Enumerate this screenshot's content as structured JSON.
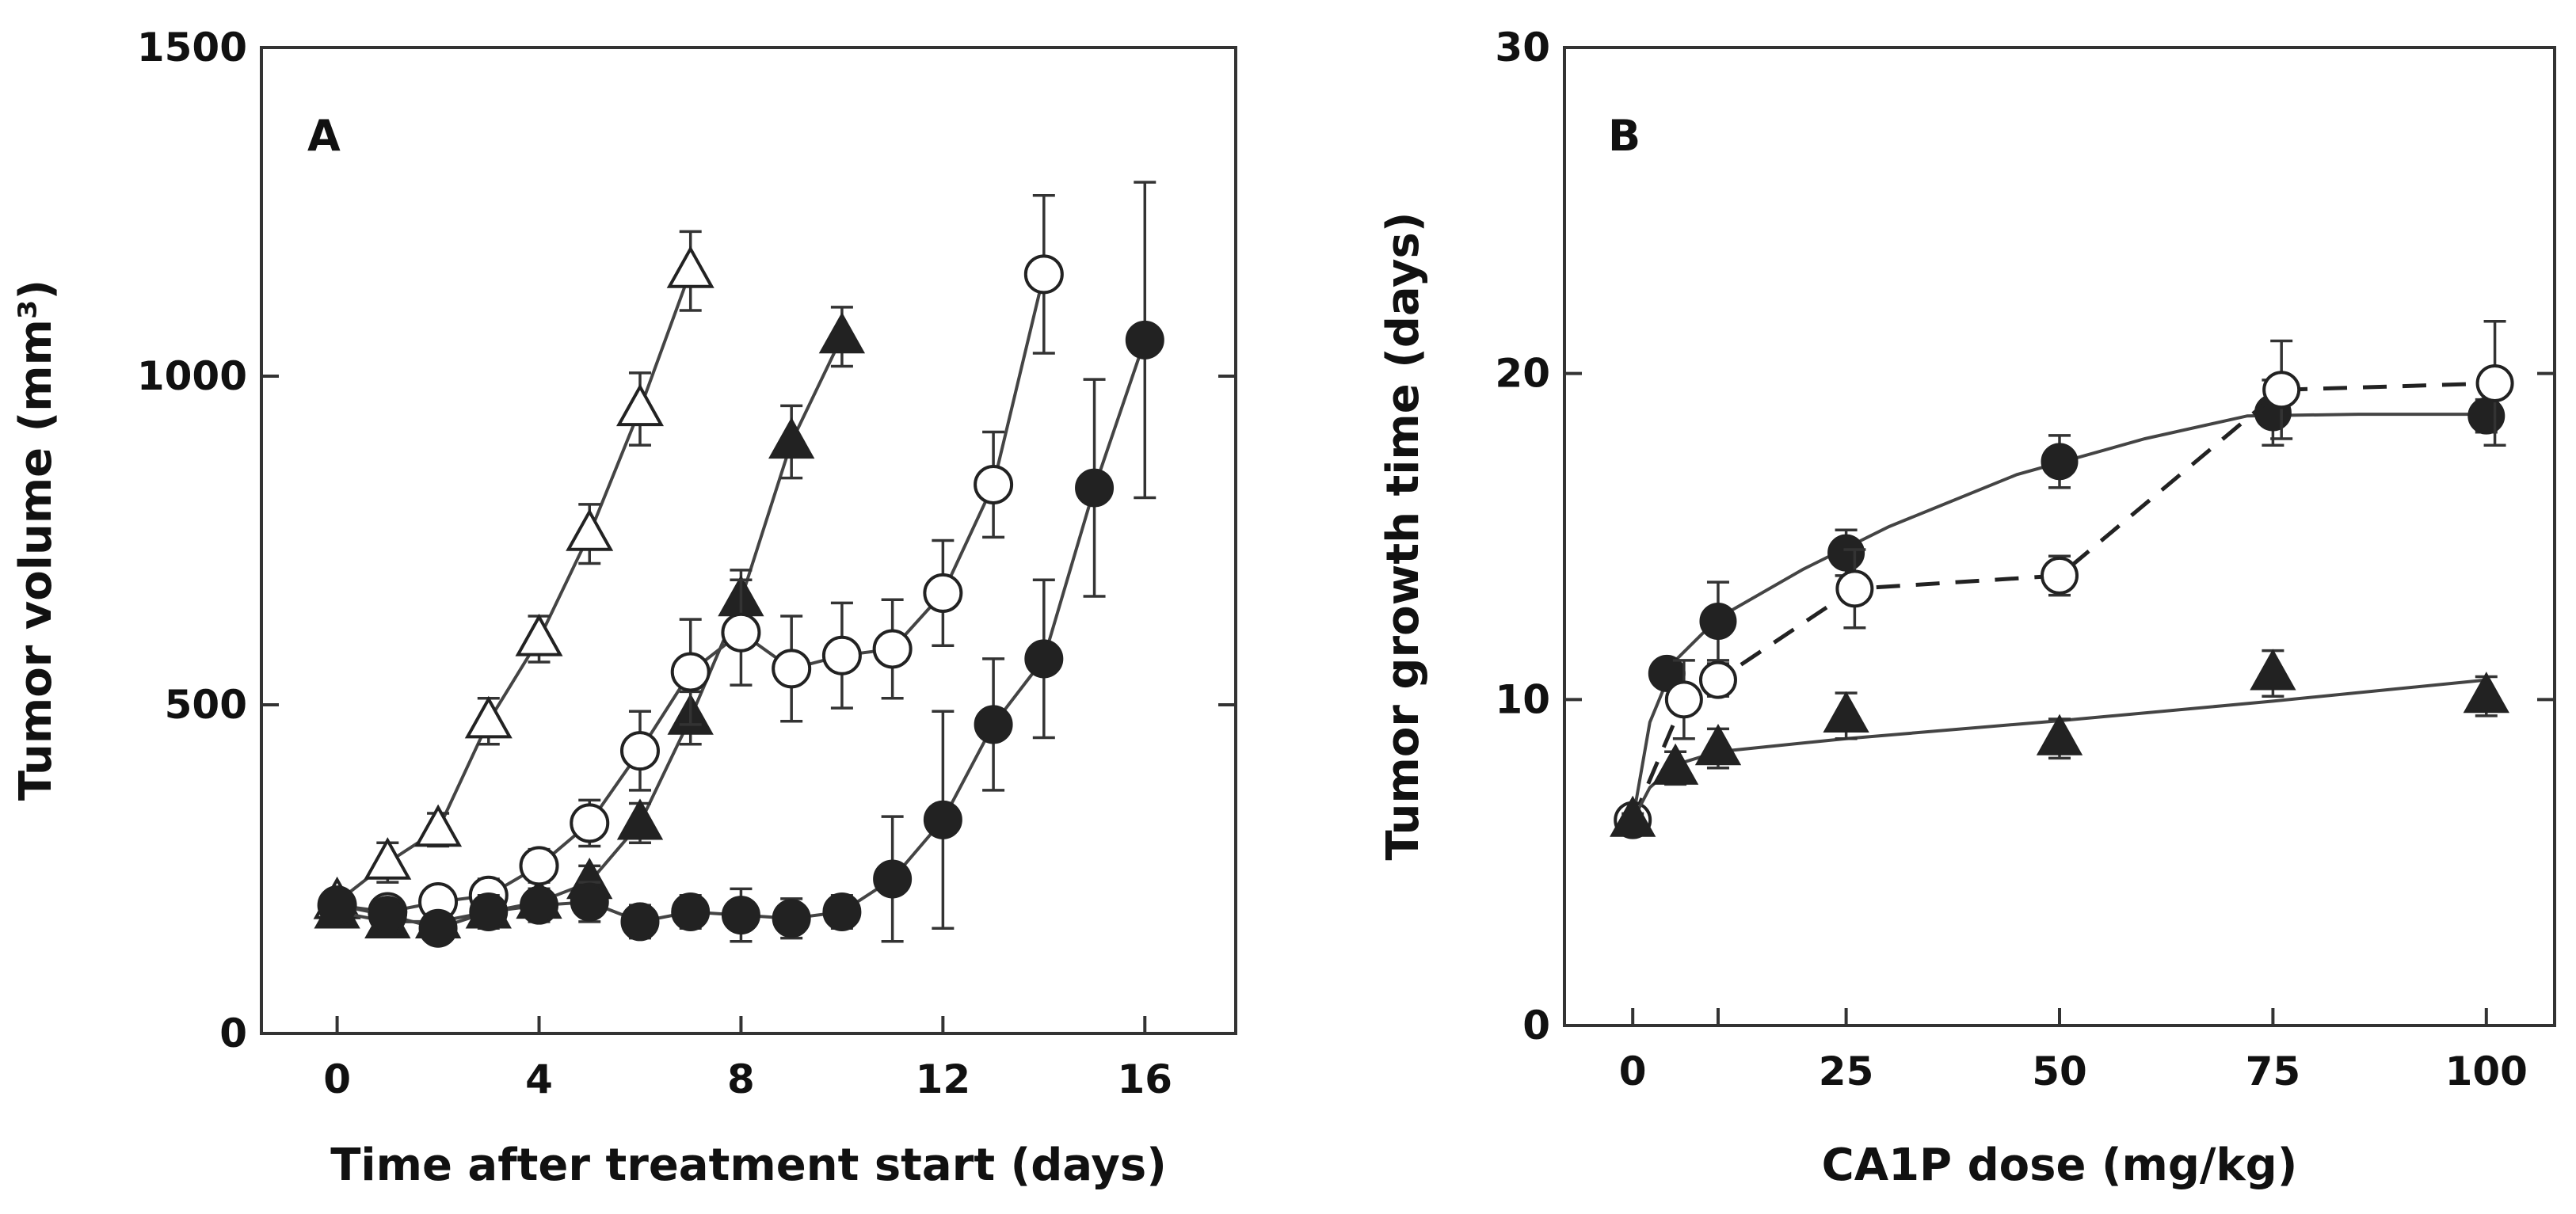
{
  "chart_data": [
    {
      "type": "line",
      "panel": "A",
      "panel_label": "A",
      "title": "",
      "xlabel": "Time after treatment start (days)",
      "ylabel": "Tumor volume (mm³)",
      "xlim": [
        -1.5,
        17.8
      ],
      "ylim": [
        0,
        1500
      ],
      "xticks": [
        0,
        4,
        8,
        12,
        16
      ],
      "yticks": [
        0,
        500,
        1000,
        1500
      ],
      "grid": false,
      "series": [
        {
          "name": "open triangles",
          "marker": "triangle",
          "filled": false,
          "points": [
            {
              "x": 0,
              "y": 200,
              "err": 15
            },
            {
              "x": 1,
              "y": 260,
              "err": 30
            },
            {
              "x": 2,
              "y": 310,
              "err": 25
            },
            {
              "x": 3,
              "y": 475,
              "err": 35
            },
            {
              "x": 4,
              "y": 600,
              "err": 35
            },
            {
              "x": 5,
              "y": 760,
              "err": 45
            },
            {
              "x": 6,
              "y": 950,
              "err": 55
            },
            {
              "x": 7,
              "y": 1160,
              "err": 60
            }
          ]
        },
        {
          "name": "filled triangles",
          "marker": "triangle",
          "filled": true,
          "points": [
            {
              "x": 0,
              "y": 185,
              "err": 15
            },
            {
              "x": 1,
              "y": 170,
              "err": 15
            },
            {
              "x": 2,
              "y": 170,
              "err": 15
            },
            {
              "x": 3,
              "y": 185,
              "err": 20
            },
            {
              "x": 4,
              "y": 200,
              "err": 20
            },
            {
              "x": 5,
              "y": 230,
              "err": 25
            },
            {
              "x": 6,
              "y": 320,
              "err": 30
            },
            {
              "x": 7,
              "y": 480,
              "err": 40
            },
            {
              "x": 8,
              "y": 660,
              "err": 45
            },
            {
              "x": 9,
              "y": 900,
              "err": 55
            },
            {
              "x": 10,
              "y": 1060,
              "err": 45
            }
          ]
        },
        {
          "name": "open circles",
          "marker": "circle",
          "filled": false,
          "points": [
            {
              "x": 0,
              "y": 195,
              "err": 15
            },
            {
              "x": 1,
              "y": 185,
              "err": 15
            },
            {
              "x": 2,
              "y": 200,
              "err": 20
            },
            {
              "x": 3,
              "y": 210,
              "err": 25
            },
            {
              "x": 4,
              "y": 255,
              "err": 25
            },
            {
              "x": 5,
              "y": 320,
              "err": 35
            },
            {
              "x": 6,
              "y": 430,
              "err": 60
            },
            {
              "x": 7,
              "y": 550,
              "err": 80
            },
            {
              "x": 8,
              "y": 610,
              "err": 80
            },
            {
              "x": 9,
              "y": 555,
              "err": 80
            },
            {
              "x": 10,
              "y": 575,
              "err": 80
            },
            {
              "x": 11,
              "y": 585,
              "err": 75
            },
            {
              "x": 12,
              "y": 670,
              "err": 80
            },
            {
              "x": 13,
              "y": 835,
              "err": 80
            },
            {
              "x": 14,
              "y": 1155,
              "err": 120
            }
          ]
        },
        {
          "name": "filled circles",
          "marker": "circle",
          "filled": true,
          "points": [
            {
              "x": 0,
              "y": 195,
              "err": 15
            },
            {
              "x": 1,
              "y": 180,
              "err": 15
            },
            {
              "x": 2,
              "y": 160,
              "err": 20
            },
            {
              "x": 3,
              "y": 185,
              "err": 25
            },
            {
              "x": 4,
              "y": 195,
              "err": 25
            },
            {
              "x": 5,
              "y": 200,
              "err": 30
            },
            {
              "x": 6,
              "y": 170,
              "err": 25
            },
            {
              "x": 7,
              "y": 185,
              "err": 25
            },
            {
              "x": 8,
              "y": 180,
              "err": 40
            },
            {
              "x": 9,
              "y": 175,
              "err": 30
            },
            {
              "x": 10,
              "y": 185,
              "err": 25
            },
            {
              "x": 11,
              "y": 235,
              "err": 95
            },
            {
              "x": 12,
              "y": 325,
              "err": 165
            },
            {
              "x": 13,
              "y": 470,
              "err": 100
            },
            {
              "x": 14,
              "y": 570,
              "err": 120
            },
            {
              "x": 15,
              "y": 830,
              "err": 165
            },
            {
              "x": 16,
              "y": 1055,
              "err": 240
            }
          ]
        }
      ]
    },
    {
      "type": "line",
      "panel": "B",
      "panel_label": "B",
      "title": "",
      "xlabel": "CA1P dose (mg/kg)",
      "ylabel": "Tumor growth time (days)",
      "xlim": [
        -8,
        108
      ],
      "ylim": [
        0,
        30
      ],
      "xticks": [
        0,
        25,
        50,
        75,
        100
      ],
      "xtick_positions": [
        0,
        10,
        25,
        50,
        75,
        100
      ],
      "xtick_labels": [
        "0",
        "",
        "25",
        "50",
        "75",
        "100"
      ],
      "yticks": [
        0,
        10,
        20,
        30
      ],
      "grid": false,
      "series": [
        {
          "name": "filled circles",
          "marker": "circle",
          "filled": true,
          "line": "solid-curve",
          "points": [
            {
              "x": 0,
              "y": 6.3,
              "err": 0.2
            },
            {
              "x": 4,
              "y": 10.8,
              "err": 0.4
            },
            {
              "x": 10,
              "y": 12.4,
              "err": 1.2
            },
            {
              "x": 25,
              "y": 14.5,
              "err": 0.7
            },
            {
              "x": 50,
              "y": 17.3,
              "err": 0.8
            },
            {
              "x": 75,
              "y": 18.8,
              "err": 1.0
            },
            {
              "x": 100,
              "y": 18.7,
              "err": 0.5
            }
          ],
          "curve": [
            {
              "x": 0,
              "y": 6.3
            },
            {
              "x": 2,
              "y": 9.3
            },
            {
              "x": 5,
              "y": 11.2
            },
            {
              "x": 10,
              "y": 12.5
            },
            {
              "x": 20,
              "y": 14.0
            },
            {
              "x": 30,
              "y": 15.3
            },
            {
              "x": 45,
              "y": 16.9
            },
            {
              "x": 60,
              "y": 18.0
            },
            {
              "x": 72,
              "y": 18.7
            },
            {
              "x": 85,
              "y": 18.75
            },
            {
              "x": 100,
              "y": 18.75
            }
          ]
        },
        {
          "name": "open circles",
          "marker": "circle",
          "filled": false,
          "line": "dashed",
          "points": [
            {
              "x": 0,
              "y": 6.3,
              "err": 0.2
            },
            {
              "x": 6,
              "y": 10.0,
              "err": 1.2
            },
            {
              "x": 10,
              "y": 10.6,
              "err": 0.5
            },
            {
              "x": 26,
              "y": 13.4,
              "err": 1.2
            },
            {
              "x": 50,
              "y": 13.8,
              "err": 0.6
            },
            {
              "x": 76,
              "y": 19.5,
              "err": 1.5
            },
            {
              "x": 101,
              "y": 19.7,
              "err": 1.9
            }
          ]
        },
        {
          "name": "filled triangles",
          "marker": "triangle",
          "filled": true,
          "line": "solid-curve",
          "points": [
            {
              "x": 0,
              "y": 6.3,
              "err": 0.2
            },
            {
              "x": 5,
              "y": 7.9,
              "err": 0.5
            },
            {
              "x": 10,
              "y": 8.5,
              "err": 0.6
            },
            {
              "x": 25,
              "y": 9.5,
              "err": 0.7
            },
            {
              "x": 50,
              "y": 8.8,
              "err": 0.6
            },
            {
              "x": 75,
              "y": 10.8,
              "err": 0.7
            },
            {
              "x": 100,
              "y": 10.1,
              "err": 0.6
            }
          ],
          "curve": [
            {
              "x": 0,
              "y": 6.3
            },
            {
              "x": 2,
              "y": 7.3
            },
            {
              "x": 5,
              "y": 8.0
            },
            {
              "x": 10,
              "y": 8.4
            },
            {
              "x": 25,
              "y": 8.8
            },
            {
              "x": 50,
              "y": 9.35
            },
            {
              "x": 75,
              "y": 9.95
            },
            {
              "x": 100,
              "y": 10.6
            }
          ]
        }
      ]
    }
  ]
}
